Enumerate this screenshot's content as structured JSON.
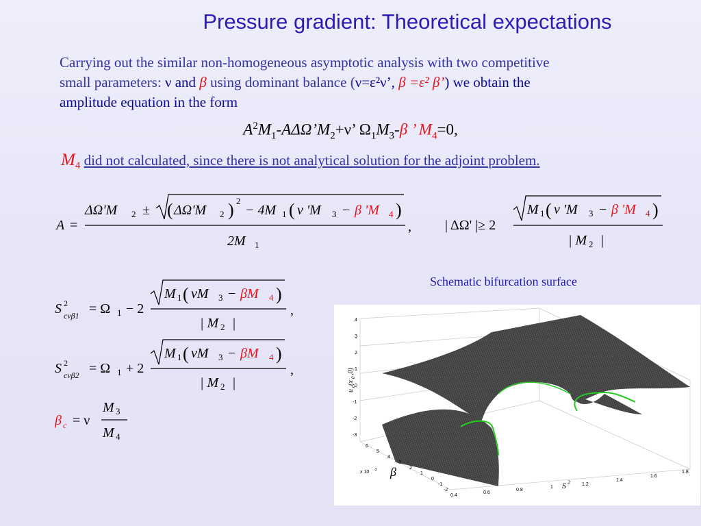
{
  "slide": {
    "title": "Pressure gradient: Theoretical expectations",
    "intro": {
      "line1": "Carrying out the similar non-homogeneous asymptotic analysis with two competitive",
      "line2_start": "small parameters:  ",
      "nu": "ν",
      "and": " and  ",
      "beta": "β",
      "using": "   using dominant balance (",
      "balance_nu": "ν=ε²ν’, ",
      "balance_beta": "β =ε² β’",
      "close": ")",
      "we_obtain": " we obtain the",
      "line3": "amplitude equation in the form"
    },
    "amplitude_equation": {
      "A": "A",
      "sq": "2",
      "M1": "M",
      "M1_sub": "1",
      "minus_A_dO": "-AΔΩ’",
      "M2": "M",
      "M2_sub": "2",
      "plus_nu_O": "+ν’ Ω",
      "O_sub": "1",
      "M3": "M",
      "M3_sub": "3",
      "minus": "-",
      "beta_prime": "β ’ ",
      "M4": "M",
      "M4_sub": "4",
      "equals_zero": "=0,"
    },
    "note": {
      "symbol": "M",
      "symbol_sub": "4",
      "text": "did not calculated, since there is not analytical solution for the adjoint problem."
    },
    "formulas": {
      "A_eq": {
        "lhs": "A",
        "eq": "=",
        "num_a": "ΔΩ'M",
        "num_a_sub": "2",
        "pm": "±",
        "paren_open": "(",
        "inner": "ΔΩ'M",
        "inner_sub": "2",
        "paren_close": ")",
        "power": "2",
        "minus4": "− 4M",
        "m1_sub": "1",
        "nu_term": "ν 'M",
        "nu_sub": "3",
        "minus": "−",
        "beta_term": "β 'M",
        "beta_sub": "4",
        "den": "2M",
        "den_sub": "1",
        "comma": ","
      },
      "delta_cond": {
        "lhs": "| ΔΩ' |≥ 2",
        "m1": "M",
        "m1_sub": "1",
        "nu_term": "ν 'M",
        "nu_sub": "3",
        "minus": "−",
        "beta_term": "β 'M",
        "beta_sub": "4",
        "den": "| M",
        "den_sub": "2",
        "den_close": "|"
      },
      "S1": {
        "S": "S",
        "sup": "2",
        "sub": "cvβ1",
        "eq": "= Ω",
        "o_sub": "1",
        "sign": "− 2",
        "m1": "M",
        "m1_sub": "1",
        "nu_term": "νM",
        "nu_sub": "3",
        "minus": "−",
        "beta_term": "βM",
        "beta_sub": "4",
        "den": "| M",
        "den_sub": "2",
        "den_close": "|",
        "comma": ","
      },
      "S2": {
        "S": "S",
        "sup": "2",
        "sub": "cvβ2",
        "eq": "= Ω",
        "o_sub": "1",
        "sign": "+ 2",
        "m1": "M",
        "m1_sub": "1",
        "nu_term": "νM",
        "nu_sub": "3",
        "minus": "−",
        "beta_term": "βM",
        "beta_sub": "4",
        "den": "| M",
        "den_sub": "2",
        "den_close": "|",
        "comma": ","
      },
      "beta_c": {
        "beta": "β",
        "sub": "c",
        "eq": "= ν",
        "num": "M",
        "num_sub": "3",
        "den": "M",
        "den_sub": "4"
      }
    },
    "caption": "Schematic bifurcation surface",
    "plot": {
      "z_label": "u",
      "z_label_sub": "x",
      "z_label_arg": "(x",
      "z_label_arg_sub": "0",
      "z_label_close": ",0)",
      "beta_label": "β",
      "s_label": "S",
      "s_label_sup": "2",
      "z_ticks": [
        "4",
        "3",
        "2",
        "1",
        "0",
        "-1",
        "-2",
        "-3"
      ],
      "beta_ticks": [
        "6",
        "5",
        "4",
        "3",
        "2",
        "1",
        "0",
        "-1",
        "-2"
      ],
      "beta_exponent": "x 10",
      "beta_exponent_power": "-3",
      "s_ticks": [
        "0.4",
        "0.6",
        "0.8",
        "1",
        "1.2",
        "1.4",
        "1.6",
        "1.8"
      ],
      "surface_color": "#3a3a3a",
      "edge_color": "#22cc22"
    },
    "colors": {
      "title": "#2f1ab3",
      "text": "#3333a6",
      "dark_text": "#0c0c96",
      "accent_red": "#e8121b"
    }
  }
}
